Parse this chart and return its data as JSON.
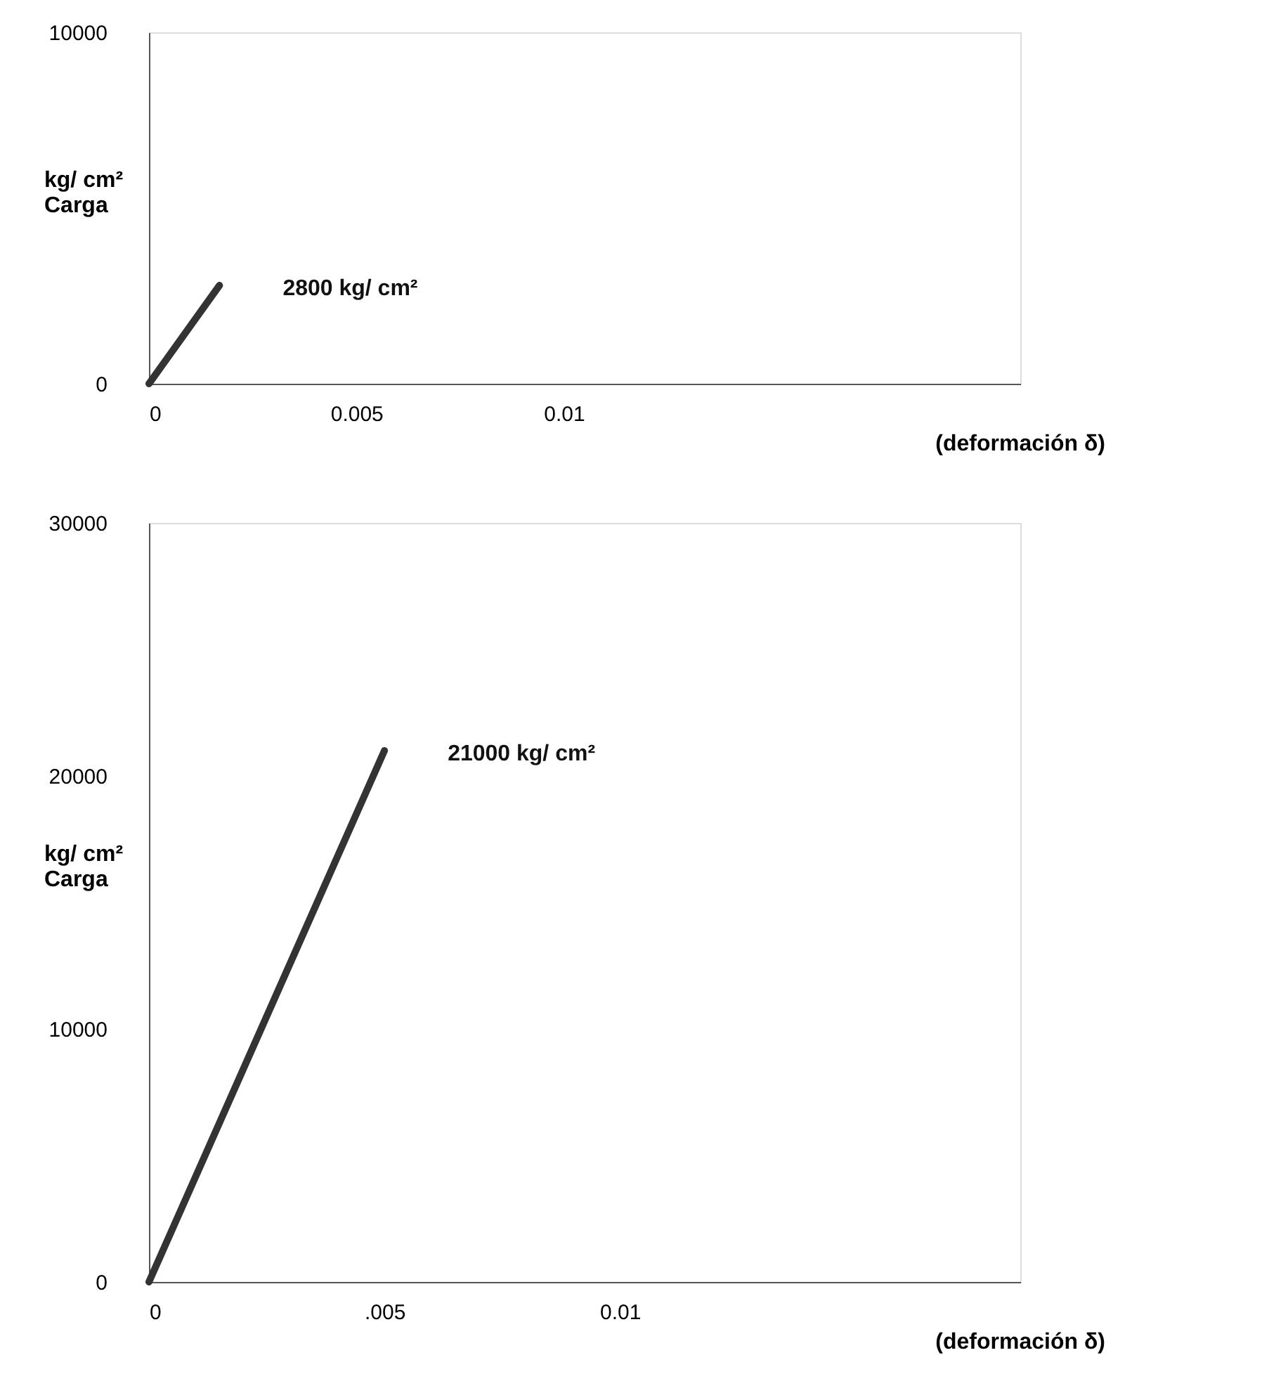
{
  "chart_data": [
    {
      "type": "line",
      "xlabel": "(deformación δ)",
      "ylabel": "kg/ cm²\nCarga",
      "x": [
        0,
        0.0017
      ],
      "series": [
        {
          "color": "#333333",
          "values": [
            0,
            2800
          ]
        }
      ],
      "xlim": [
        0,
        0.021
      ],
      "ylim": [
        0,
        10000
      ],
      "xticks": [
        0,
        0.005,
        0.01
      ],
      "yticks": [
        0,
        10000
      ],
      "grid": false,
      "annotations": [
        {
          "text": "2800 kg/ cm²",
          "x": 0.0017,
          "y": 2800
        }
      ]
    },
    {
      "type": "line",
      "xlabel": "(deformación δ)",
      "ylabel": "kg/ cm²\nCarga",
      "x": [
        0,
        0.005
      ],
      "series": [
        {
          "color": "#333333",
          "values": [
            0,
            21000
          ]
        }
      ],
      "xlim": [
        0,
        0.0185
      ],
      "ylim": [
        0,
        30000
      ],
      "xticks": [
        0,
        {
          "value": 0.005,
          "label": ".005"
        },
        0.01
      ],
      "yticks": [
        0,
        10000,
        20000,
        30000
      ],
      "grid": false,
      "annotations": [
        {
          "text": "21000 kg/ cm²",
          "x": 0.005,
          "y": 21000
        }
      ]
    }
  ]
}
